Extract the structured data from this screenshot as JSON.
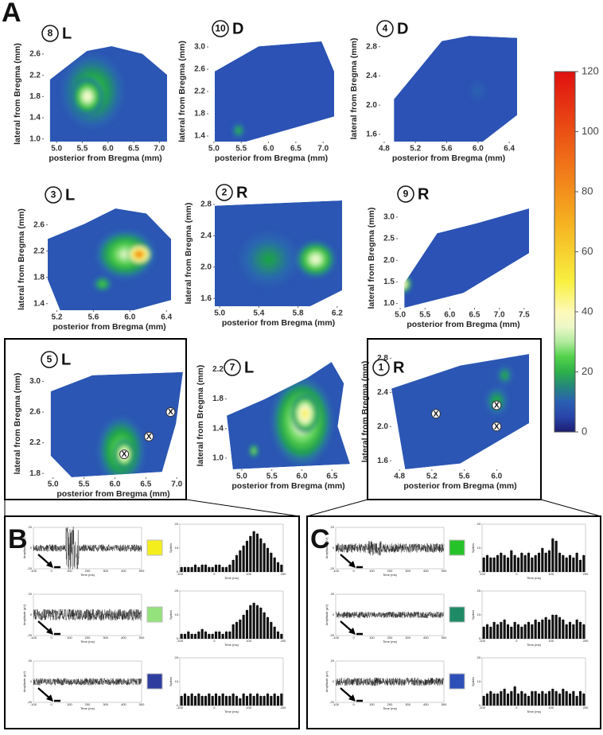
{
  "panel_a": {
    "letter": "A",
    "xlabel": "posterior from Bregma (mm)",
    "ylabel": "lateral from Bregma (mm)",
    "marker_label": "X",
    "maps": [
      {
        "number": "8",
        "side": "L",
        "base": 8,
        "xlim": [
          4.75,
          7.15
        ],
        "ylim": [
          0.95,
          2.75
        ],
        "xticks": [
          {
            "value": 5,
            "label": "5.0"
          },
          5.5,
          {
            "value": 6,
            "label": "6.0"
          },
          6.5,
          {
            "value": 7,
            "label": "7.0"
          }
        ],
        "yticks": [
          {
            "value": 1,
            "label": "1.0"
          },
          1.4,
          1.8,
          2.2,
          2.6
        ],
        "hotspots": [
          {
            "x": 5.7,
            "y": 1.9,
            "value": 24,
            "radius": 0.6
          },
          {
            "x": 5.6,
            "y": 1.8,
            "value": 38,
            "radius": 0.3
          }
        ],
        "markers": []
      },
      {
        "number": "10",
        "side": "D",
        "base": 7,
        "xlim": [
          4.9,
          7.2
        ],
        "ylim": [
          1.3,
          3.1
        ],
        "xticks": [
          {
            "value": 5,
            "label": "5.0"
          },
          5.5,
          {
            "value": 6,
            "label": "6.0"
          },
          6.5,
          {
            "value": 7,
            "label": "7.0"
          }
        ],
        "yticks": [
          1.4,
          1.8,
          2.2,
          2.6,
          {
            "value": 3,
            "label": "3.0"
          }
        ],
        "hotspots": [
          {
            "x": 5.45,
            "y": 1.5,
            "value": 22,
            "radius": 0.12
          }
        ],
        "markers": []
      },
      {
        "number": "4",
        "side": "D",
        "base": 7,
        "xlim": [
          4.75,
          6.5
        ],
        "ylim": [
          1.5,
          2.95
        ],
        "xticks": [
          4.8,
          5.2,
          5.6,
          {
            "value": 6,
            "label": "6.0"
          },
          6.4
        ],
        "yticks": [
          1.6,
          {
            "value": 2,
            "label": "2.0"
          },
          2.4,
          2.8
        ],
        "hotspots": [
          {
            "x": 6.0,
            "y": 2.2,
            "value": 11,
            "radius": 0.12
          }
        ],
        "markers": []
      },
      {
        "number": "3",
        "side": "L",
        "base": 8,
        "xlim": [
          5.1,
          6.45
        ],
        "ylim": [
          1.3,
          2.85
        ],
        "xticks": [
          5.2,
          5.6,
          {
            "value": 6,
            "label": "6.0"
          },
          6.4
        ],
        "yticks": [
          1.4,
          1.8,
          2.2,
          2.6
        ],
        "hotspots": [
          {
            "x": 5.95,
            "y": 2.15,
            "value": 32,
            "radius": 0.32
          },
          {
            "x": 6.1,
            "y": 2.15,
            "value": 90,
            "radius": 0.13
          },
          {
            "x": 5.7,
            "y": 1.7,
            "value": 25,
            "radius": 0.1
          }
        ],
        "markers": []
      },
      {
        "number": "2",
        "side": "R",
        "base": 8,
        "xlim": [
          4.95,
          6.25
        ],
        "ylim": [
          1.5,
          2.85
        ],
        "xticks": [
          {
            "value": 5,
            "label": "5.0"
          },
          5.4,
          5.8,
          6.2
        ],
        "yticks": [
          1.6,
          {
            "value": 2,
            "label": "2.0"
          },
          2.4,
          2.8
        ],
        "hotspots": [
          {
            "x": 5.5,
            "y": 2.1,
            "value": 18,
            "radius": 0.3
          },
          {
            "x": 5.98,
            "y": 2.1,
            "value": 36,
            "radius": 0.2
          }
        ],
        "markers": []
      },
      {
        "number": "9",
        "side": "R",
        "base": 7,
        "xlim": [
          4.95,
          7.6
        ],
        "ylim": [
          0.9,
          3.2
        ],
        "xticks": [
          {
            "value": 5,
            "label": "5.0"
          },
          5.5,
          {
            "value": 6,
            "label": "6.0"
          },
          6.5,
          {
            "value": 7,
            "label": "7.0"
          },
          7.5
        ],
        "yticks": [
          {
            "value": 1,
            "label": "1.0"
          },
          1.5,
          {
            "value": 2,
            "label": "2.0"
          },
          2.5,
          {
            "value": 3,
            "label": "3.0"
          }
        ],
        "hotspots": [
          {
            "x": 5.05,
            "y": 1.45,
            "value": 45,
            "radius": 0.18
          }
        ],
        "markers": []
      },
      {
        "number": "5",
        "side": "L",
        "base": 8,
        "xlim": [
          4.85,
          7.1
        ],
        "ylim": [
          1.75,
          3.15
        ],
        "xticks": [
          {
            "value": 5,
            "label": "5.0"
          },
          5.5,
          {
            "value": 6,
            "label": "6.0"
          },
          6.5,
          {
            "value": 7,
            "label": "7.0"
          }
        ],
        "yticks": [
          1.8,
          2.2,
          2.6,
          {
            "value": 3,
            "label": "3.0"
          }
        ],
        "hotspots": [
          {
            "x": 6.1,
            "y": 2.1,
            "value": 28,
            "radius": 0.38
          },
          {
            "x": 6.15,
            "y": 2.05,
            "value": 45,
            "radius": 0.16
          }
        ],
        "markers": [
          {
            "x": 6.15,
            "y": 2.05
          },
          {
            "x": 6.55,
            "y": 2.28
          },
          {
            "x": 6.9,
            "y": 2.6
          }
        ]
      },
      {
        "number": "7",
        "side": "L",
        "base": 8,
        "xlim": [
          4.75,
          6.8
        ],
        "ylim": [
          0.85,
          2.3
        ],
        "xticks": [
          {
            "value": 5,
            "label": "5.0"
          },
          5.5,
          {
            "value": 6,
            "label": "6.0"
          },
          6.5
        ],
        "yticks": [
          {
            "value": 1,
            "label": "1.0"
          },
          1.4,
          1.8,
          2.2
        ],
        "hotspots": [
          {
            "x": 6.0,
            "y": 1.5,
            "value": 36,
            "radius": 0.5
          },
          {
            "x": 6.05,
            "y": 1.6,
            "value": 50,
            "radius": 0.22
          },
          {
            "x": 5.2,
            "y": 1.1,
            "value": 30,
            "radius": 0.08
          }
        ],
        "markers": []
      },
      {
        "number": "1",
        "side": "R",
        "base": 8,
        "xlim": [
          4.7,
          6.4
        ],
        "ylim": [
          1.5,
          2.85
        ],
        "xticks": [
          4.8,
          5.2,
          5.6,
          {
            "value": 6,
            "label": "6.0"
          }
        ],
        "yticks": [
          1.6,
          {
            "value": 2,
            "label": "2.0"
          },
          2.4,
          2.8
        ],
        "hotspots": [
          {
            "x": 6.0,
            "y": 2.3,
            "value": 20,
            "radius": 0.15
          },
          {
            "x": 6.1,
            "y": 2.6,
            "value": 20,
            "radius": 0.1
          }
        ],
        "markers": [
          {
            "x": 5.25,
            "y": 2.15
          },
          {
            "x": 6.0,
            "y": 2.25
          },
          {
            "x": 6.0,
            "y": 2.0
          }
        ]
      }
    ],
    "colorbar": {
      "lim": [
        0,
        120
      ],
      "ticks": [
        0,
        20,
        40,
        60,
        80,
        100,
        120
      ]
    }
  },
  "panel_b": {
    "letter": "B",
    "trace_ylabel": "Amplitude (μV)",
    "time_label": "Time (ms)",
    "hist_ylabel": "Spikes",
    "trace_xlim": [
      -100,
      500
    ],
    "trace_xticks": [
      -100,
      0,
      100,
      200,
      300,
      400,
      500
    ],
    "trace_ylim": [
      -20,
      20
    ],
    "trace_yticks": [
      -20,
      0,
      20
    ],
    "hist_xlim": [
      -100,
      200
    ],
    "hist_xticks": [
      -100,
      0,
      100,
      200
    ],
    "hist_ylim": [
      0,
      20
    ],
    "hist_yticks": [
      0,
      10,
      20
    ],
    "rows": [
      {
        "color": "#f4ee1c",
        "values": [
          2,
          2,
          2,
          2,
          3,
          2,
          3,
          3,
          2,
          2,
          3,
          3,
          2,
          2,
          3,
          5,
          7,
          9,
          11,
          13,
          15,
          17,
          16,
          14,
          12,
          10,
          8,
          6,
          4,
          3
        ]
      },
      {
        "color": "#94e27c",
        "values": [
          2,
          2,
          3,
          2,
          2,
          3,
          4,
          3,
          2,
          2,
          3,
          3,
          2,
          3,
          3,
          6,
          7,
          8,
          10,
          12,
          14,
          15,
          14,
          13,
          11,
          9,
          7,
          5,
          3,
          2
        ]
      },
      {
        "color": "#2f3e9e",
        "values": [
          4,
          5,
          4,
          5,
          4,
          5,
          4,
          4,
          5,
          4,
          5,
          4,
          5,
          4,
          4,
          5,
          4,
          3,
          5,
          4,
          5,
          4,
          5,
          4,
          4,
          5,
          4,
          5,
          4,
          5
        ]
      }
    ]
  },
  "panel_c": {
    "letter": "C",
    "trace_ylabel": "Amplitude (μV)",
    "time_label": "Time (ms)",
    "hist_ylabel": "Spikes",
    "trace_xlim": [
      -100,
      500
    ],
    "trace_xticks": [
      -100,
      0,
      100,
      200,
      300,
      400,
      500
    ],
    "trace_ylim": [
      -20,
      20
    ],
    "trace_yticks": [
      -20,
      0,
      20
    ],
    "hist_xlim": [
      -100,
      200
    ],
    "hist_xticks": [
      -100,
      0,
      100,
      200
    ],
    "hist_ylim": [
      0,
      20
    ],
    "hist_yticks": [
      0,
      10,
      20
    ],
    "rows": [
      {
        "color": "#26c22a",
        "values": [
          6,
          7,
          6,
          6,
          7,
          8,
          7,
          6,
          9,
          7,
          6,
          8,
          7,
          8,
          6,
          7,
          8,
          10,
          8,
          9,
          14,
          13,
          8,
          7,
          6,
          7,
          6,
          8,
          5,
          7
        ]
      },
      {
        "color": "#1e8a66",
        "values": [
          5,
          6,
          5,
          7,
          6,
          7,
          8,
          6,
          5,
          7,
          6,
          5,
          6,
          7,
          6,
          8,
          7,
          8,
          9,
          8,
          10,
          10,
          9,
          8,
          6,
          7,
          6,
          8,
          7,
          6
        ]
      },
      {
        "color": "#2d4fb8",
        "values": [
          4,
          5,
          6,
          5,
          5,
          6,
          7,
          5,
          6,
          8,
          5,
          6,
          5,
          4,
          6,
          6,
          5,
          6,
          5,
          6,
          7,
          6,
          5,
          7,
          6,
          5,
          6,
          4,
          6,
          5
        ]
      }
    ]
  }
}
